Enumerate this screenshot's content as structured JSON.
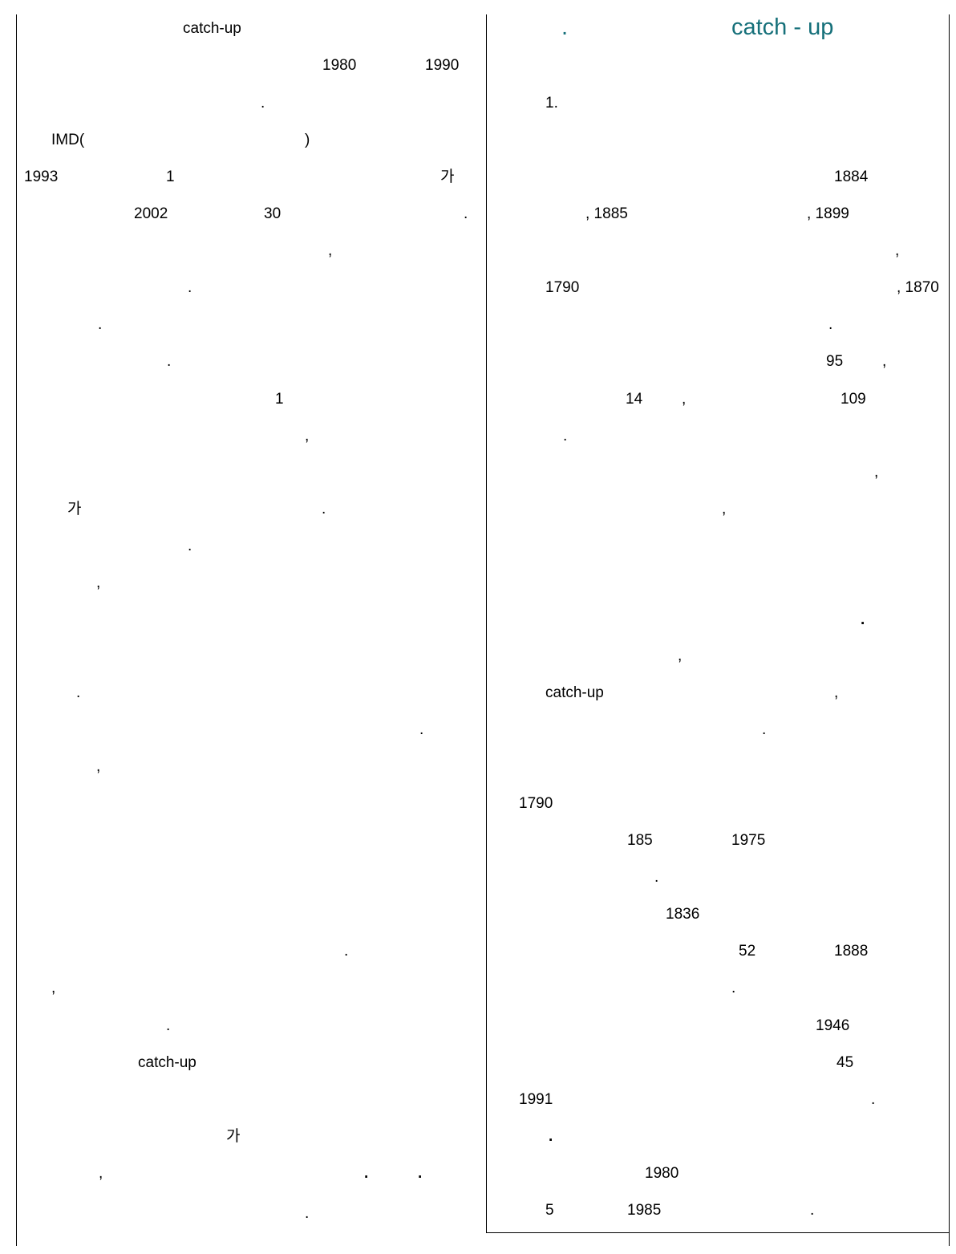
{
  "left_column": [
    {
      "id": "l1",
      "text": "catch-up"
    },
    {
      "id": "l2a",
      "text": "1980"
    },
    {
      "id": "l2b",
      "text": "1990"
    },
    {
      "id": "l3",
      "text": "."
    },
    {
      "id": "l4a",
      "text": "IMD("
    },
    {
      "id": "l4b",
      "text": ")"
    },
    {
      "id": "l5a",
      "text": "1993"
    },
    {
      "id": "l5b",
      "text": "1"
    },
    {
      "id": "l5c",
      "text": "가"
    },
    {
      "id": "l6a",
      "text": "2002"
    },
    {
      "id": "l6b",
      "text": "30"
    },
    {
      "id": "l6c",
      "text": "."
    },
    {
      "id": "l7",
      "text": ","
    },
    {
      "id": "l8",
      "text": "."
    },
    {
      "id": "l9",
      "text": "."
    },
    {
      "id": "l10",
      "text": "."
    },
    {
      "id": "l11",
      "text": "1"
    },
    {
      "id": "l12",
      "text": ","
    },
    {
      "id": "l13a",
      "text": "가"
    },
    {
      "id": "l13b",
      "text": "."
    },
    {
      "id": "l14",
      "text": "."
    },
    {
      "id": "l15",
      "text": ","
    },
    {
      "id": "l16",
      "text": "."
    },
    {
      "id": "l17",
      "text": "."
    },
    {
      "id": "l18",
      "text": ","
    },
    {
      "id": "l19",
      "text": "."
    },
    {
      "id": "l20",
      "text": ","
    },
    {
      "id": "l21",
      "text": "."
    },
    {
      "id": "l22",
      "text": "catch-up"
    },
    {
      "id": "l23",
      "text": "가"
    },
    {
      "id": "l24a",
      "text": ","
    },
    {
      "id": "l24b",
      "text": "."
    },
    {
      "id": "l24c",
      "text": "."
    },
    {
      "id": "l25",
      "text": "."
    }
  ],
  "right_column": {
    "heading_dot": ".",
    "heading_text": "catch - up",
    "lines": [
      {
        "id": "r1",
        "text": "1."
      },
      {
        "id": "r2",
        "text": "1884"
      },
      {
        "id": "r3a",
        "text": ", 1885"
      },
      {
        "id": "r3b",
        "text": ", 1899"
      },
      {
        "id": "r4",
        "text": ","
      },
      {
        "id": "r5a",
        "text": "1790"
      },
      {
        "id": "r5b",
        "text": ", 1870"
      },
      {
        "id": "r6",
        "text": "."
      },
      {
        "id": "r7a",
        "text": "95"
      },
      {
        "id": "r7b",
        "text": ","
      },
      {
        "id": "r8a",
        "text": "14"
      },
      {
        "id": "r8b",
        "text": ","
      },
      {
        "id": "r8c",
        "text": "109"
      },
      {
        "id": "r9",
        "text": "."
      },
      {
        "id": "r10",
        "text": ","
      },
      {
        "id": "r11",
        "text": ","
      },
      {
        "id": "r12",
        "text": "."
      },
      {
        "id": "r13",
        "text": ","
      },
      {
        "id": "r14a",
        "text": "catch-up"
      },
      {
        "id": "r14b",
        "text": ","
      },
      {
        "id": "r15",
        "text": "."
      },
      {
        "id": "r16",
        "text": "1790"
      },
      {
        "id": "r17a",
        "text": "185"
      },
      {
        "id": "r17b",
        "text": "1975"
      },
      {
        "id": "r18",
        "text": "."
      },
      {
        "id": "r19",
        "text": "1836"
      },
      {
        "id": "r20a",
        "text": "52"
      },
      {
        "id": "r20b",
        "text": "1888"
      },
      {
        "id": "r21",
        "text": "."
      },
      {
        "id": "r22",
        "text": "1946"
      },
      {
        "id": "r23",
        "text": "45"
      },
      {
        "id": "r24a",
        "text": "1991"
      },
      {
        "id": "r24b",
        "text": "."
      },
      {
        "id": "r25",
        "text": "."
      },
      {
        "id": "r26",
        "text": "1980"
      },
      {
        "id": "r27a",
        "text": "5"
      },
      {
        "id": "r27b",
        "text": "1985"
      },
      {
        "id": "r27c",
        "text": "."
      }
    ]
  }
}
